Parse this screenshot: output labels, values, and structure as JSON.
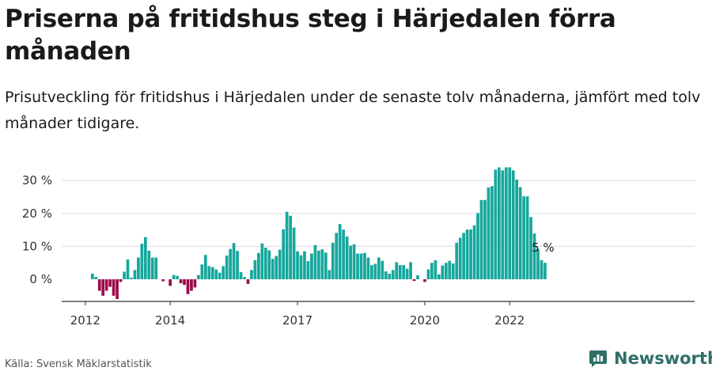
{
  "title": "Priserna på fritidshus steg i Härjedalen förra månaden",
  "subtitle": "Prisutveckling för fritidshus i Härjedalen under de senaste tolv månaderna, jämfört med tolv månader tidigare.",
  "source": "Källa: Svensk Mäklarstatistik",
  "brand": "Newsworthy",
  "colors": {
    "positive": "#15a79c",
    "negative": "#9e0a4c",
    "grid": "#dddddd",
    "axis": "#333333",
    "brand": "#2f6f67"
  },
  "chart_data": {
    "type": "bar",
    "ylim": [
      -6,
      34
    ],
    "yticks": [
      0,
      10,
      20,
      30
    ],
    "ytick_labels": [
      "0 %",
      "10 %",
      "20 %",
      "30 %"
    ],
    "xticks": [
      {
        "label": "2012",
        "index": 0
      },
      {
        "label": "2014",
        "index": 24
      },
      {
        "label": "2017",
        "index": 60
      },
      {
        "label": "2020",
        "index": 96
      },
      {
        "label": "2022",
        "index": 120
      }
    ],
    "start_index": 2,
    "last_value_label": "5 %",
    "values": [
      1.7,
      0.7,
      -3.5,
      -5.0,
      -3.5,
      -2.3,
      -5.0,
      -6.0,
      -0.8,
      2.3,
      6.0,
      0.5,
      2.8,
      6.6,
      10.8,
      12.8,
      8.7,
      6.6,
      6.6,
      0,
      -0.6,
      0,
      -2.0,
      1.3,
      1.0,
      -1.2,
      -1.7,
      -4.5,
      -3.5,
      -2.5,
      1.3,
      4.5,
      7.4,
      4.0,
      3.7,
      3.0,
      2.0,
      4.0,
      7.2,
      9.2,
      11.0,
      8.6,
      2.2,
      0.7,
      -1.4,
      2.8,
      5.8,
      8.0,
      10.9,
      9.6,
      8.8,
      6.2,
      7.1,
      9.0,
      15.2,
      20.5,
      19.3,
      15.7,
      8.5,
      7.3,
      8.5,
      5.5,
      7.8,
      10.4,
      8.7,
      9.1,
      8.1,
      2.8,
      11.1,
      14.1,
      16.8,
      15.1,
      13.0,
      10.2,
      10.6,
      7.8,
      7.8,
      8.0,
      6.6,
      4.3,
      4.7,
      6.6,
      5.6,
      2.4,
      1.7,
      2.8,
      5.2,
      4.3,
      4.3,
      3.2,
      5.2,
      -0.5,
      1.2,
      0,
      -0.8,
      3.0,
      5.0,
      5.8,
      1.5,
      4.2,
      5.0,
      5.6,
      4.8,
      11.1,
      12.6,
      14.1,
      15.1,
      15.1,
      16.4,
      20.1,
      24.1,
      24.1,
      27.9,
      28.3,
      33.3,
      34.0,
      33.1,
      34.0,
      34.0,
      33.1,
      30.3,
      28.0,
      25.2,
      25.2,
      18.9,
      13.9,
      9.2,
      5.8,
      5.0
    ]
  }
}
